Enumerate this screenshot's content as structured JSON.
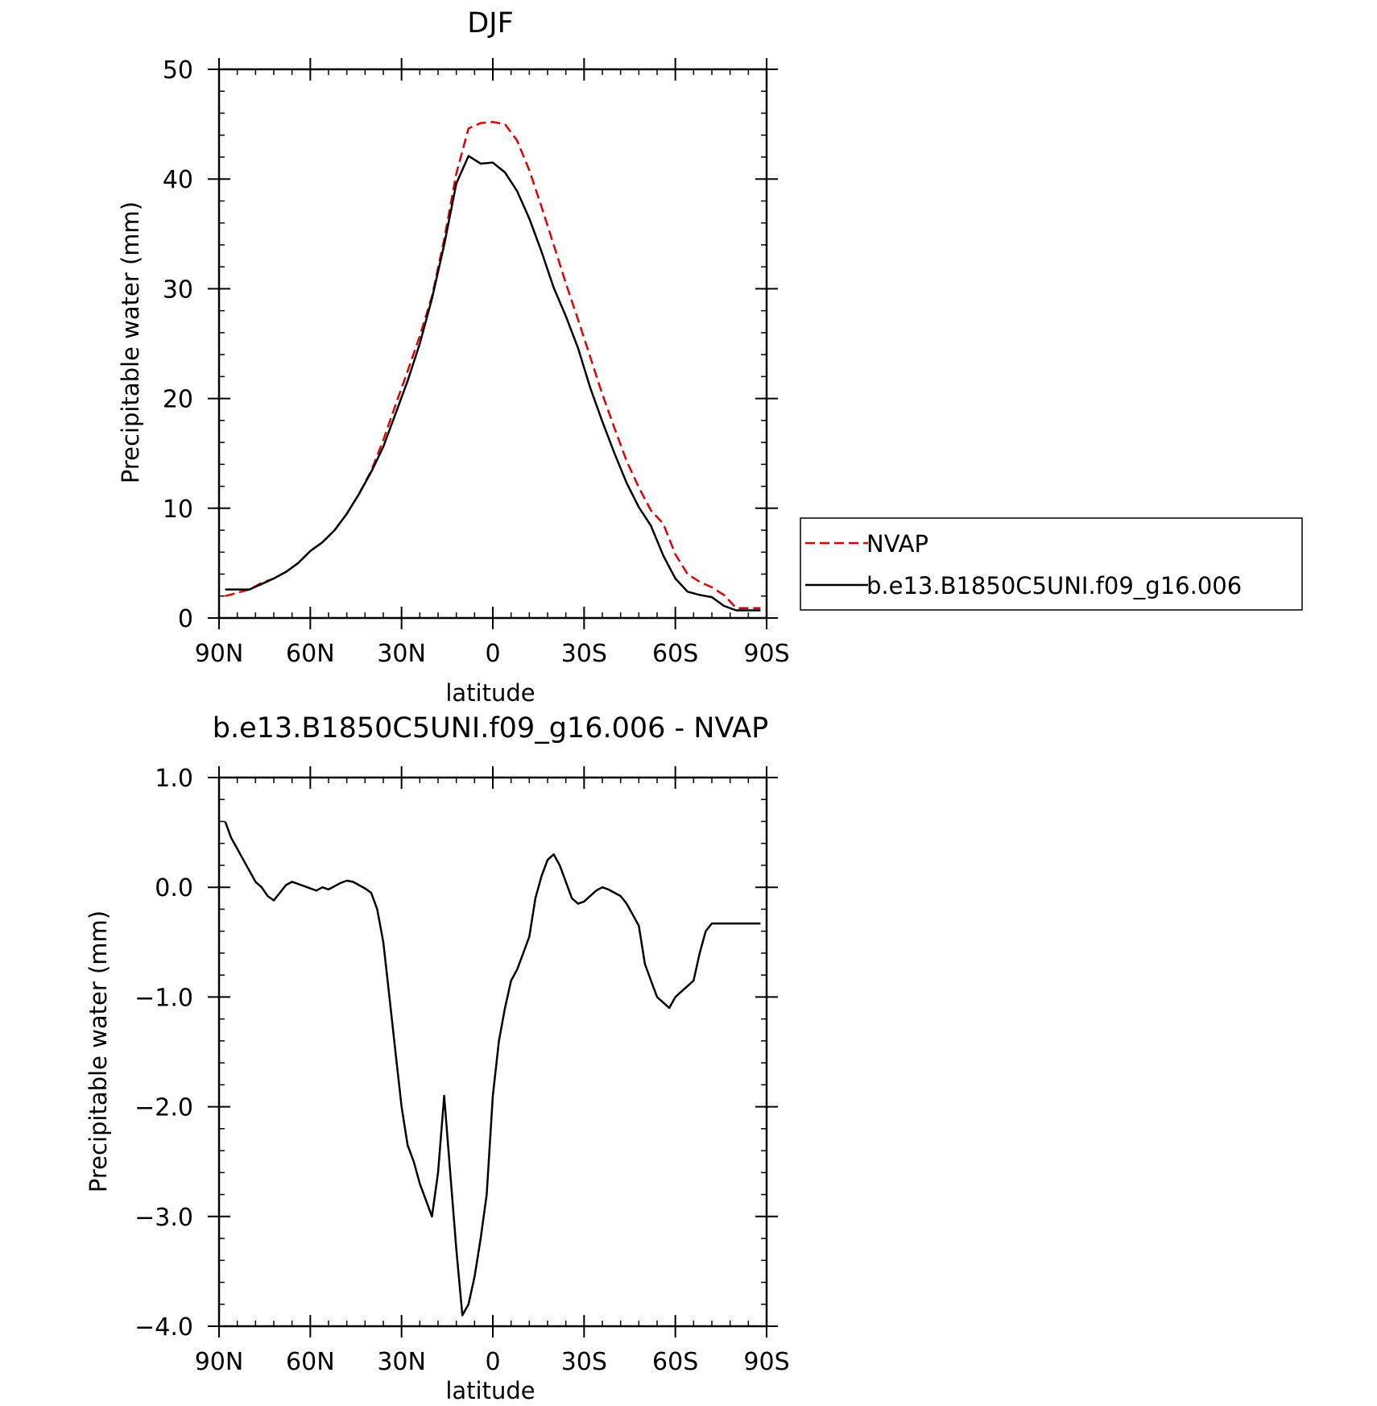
{
  "chart_data": [
    {
      "type": "line",
      "title": "DJF",
      "xlabel": "latitude",
      "ylabel": "Precipitable water (mm)",
      "xlim": [
        -90,
        90
      ],
      "ylim": [
        0,
        50
      ],
      "x_direction": "north-to-south",
      "xticks": [
        {
          "value": -90,
          "label": "90N"
        },
        {
          "value": -60,
          "label": "60N"
        },
        {
          "value": -30,
          "label": "30N"
        },
        {
          "value": 0,
          "label": "0"
        },
        {
          "value": 30,
          "label": "30S"
        },
        {
          "value": 60,
          "label": "60S"
        },
        {
          "value": 90,
          "label": "90S"
        }
      ],
      "yticks": [
        {
          "value": 0,
          "label": "0"
        },
        {
          "value": 10,
          "label": "10"
        },
        {
          "value": 20,
          "label": "20"
        },
        {
          "value": 30,
          "label": "30"
        },
        {
          "value": 40,
          "label": "40"
        },
        {
          "value": 50,
          "label": "50"
        }
      ],
      "legend": {
        "placement": "right",
        "entries": [
          {
            "name": "NVAP",
            "color": "#e00000",
            "dash": true
          },
          {
            "name": "b.e13.B1850C5UNI.f09_g16.006",
            "color": "#000000",
            "dash": false
          }
        ]
      },
      "series": [
        {
          "name": "NVAP",
          "color": "#e00000",
          "dash": true,
          "x": [
            -88,
            -84,
            -80,
            -76,
            -72,
            -68,
            -64,
            -60,
            -56,
            -52,
            -48,
            -44,
            -40,
            -36,
            -32,
            -28,
            -24,
            -20,
            -16,
            -12,
            -8,
            -4,
            0,
            4,
            8,
            12,
            16,
            20,
            24,
            28,
            32,
            36,
            40,
            44,
            48,
            52,
            56,
            60,
            64,
            68,
            72,
            76,
            80,
            84,
            88
          ],
          "values": [
            2.0,
            2.3,
            2.6,
            3.2,
            3.6,
            4.2,
            5.0,
            6.1,
            6.9,
            8.0,
            9.5,
            11.3,
            13.4,
            16.2,
            19.4,
            22.5,
            25.7,
            29.3,
            34.5,
            40.5,
            44.6,
            45.1,
            45.2,
            45.0,
            43.5,
            40.8,
            37.5,
            34.0,
            30.5,
            27.2,
            23.8,
            20.4,
            17.3,
            14.3,
            11.9,
            9.8,
            8.6,
            5.8,
            4.0,
            3.3,
            2.8,
            2.1,
            0.9,
            0.9,
            0.9
          ]
        },
        {
          "name": "b.e13.B1850C5UNI.f09_g16.006",
          "color": "#000000",
          "dash": false,
          "x": [
            -88,
            -84,
            -80,
            -76,
            -72,
            -68,
            -64,
            -60,
            -56,
            -52,
            -48,
            -44,
            -40,
            -36,
            -32,
            -28,
            -24,
            -20,
            -16,
            -12,
            -8,
            -4,
            0,
            4,
            8,
            12,
            16,
            20,
            24,
            28,
            32,
            36,
            40,
            44,
            48,
            52,
            56,
            60,
            64,
            68,
            72,
            76,
            80,
            84,
            88
          ],
          "values": [
            2.6,
            2.6,
            2.6,
            3.1,
            3.6,
            4.2,
            5.0,
            6.1,
            6.9,
            8.0,
            9.5,
            11.3,
            13.3,
            15.6,
            18.6,
            21.6,
            25.0,
            29.1,
            34.0,
            39.6,
            42.1,
            41.4,
            41.5,
            40.6,
            38.9,
            36.4,
            33.4,
            30.1,
            27.5,
            24.6,
            21.0,
            17.9,
            15.0,
            12.3,
            10.1,
            8.4,
            5.7,
            3.6,
            2.4,
            2.1,
            1.9,
            1.1,
            0.7,
            0.7,
            0.7
          ]
        }
      ]
    },
    {
      "type": "line",
      "title": "b.e13.B1850C5UNI.f09_g16.006 - NVAP",
      "xlabel": "latitude",
      "ylabel": "Precipitable water (mm)",
      "xlim": [
        -90,
        90
      ],
      "ylim": [
        -4.0,
        1.0
      ],
      "x_direction": "north-to-south",
      "xticks": [
        {
          "value": -90,
          "label": "90N"
        },
        {
          "value": -60,
          "label": "60N"
        },
        {
          "value": -30,
          "label": "30N"
        },
        {
          "value": 0,
          "label": "0"
        },
        {
          "value": 30,
          "label": "30S"
        },
        {
          "value": 60,
          "label": "60S"
        },
        {
          "value": 90,
          "label": "90S"
        }
      ],
      "yticks": [
        {
          "value": 1.0,
          "label": "1.0"
        },
        {
          "value": 0.0,
          "label": "0.0"
        },
        {
          "value": -1.0,
          "label": "−1.0"
        },
        {
          "value": -2.0,
          "label": "−2.0"
        },
        {
          "value": -3.0,
          "label": "−3.0"
        },
        {
          "value": -4.0,
          "label": "−4.0"
        }
      ],
      "series": [
        {
          "color": "#000000",
          "dash": false,
          "x": [
            -88,
            -86,
            -84,
            -82,
            -80,
            -78,
            -76,
            -74,
            -72,
            -70,
            -68,
            -66,
            -64,
            -62,
            -60,
            -58,
            -56,
            -54,
            -52,
            -50,
            -48,
            -46,
            -44,
            -42,
            -40,
            -38,
            -36,
            -34,
            -32,
            -30,
            -28,
            -26,
            -24,
            -22,
            -20,
            -18,
            -16,
            -14,
            -12,
            -10,
            -8,
            -6,
            -4,
            -2,
            0,
            2,
            4,
            6,
            8,
            10,
            12,
            14,
            16,
            18,
            20,
            22,
            24,
            26,
            28,
            30,
            32,
            34,
            36,
            38,
            40,
            42,
            44,
            46,
            48,
            50,
            52,
            54,
            56,
            58,
            60,
            62,
            64,
            66,
            68,
            70,
            72,
            74,
            76,
            78,
            80,
            82,
            84,
            86,
            88
          ],
          "values": [
            0.6,
            0.45,
            0.35,
            0.25,
            0.15,
            0.05,
            0.0,
            -0.08,
            -0.12,
            -0.05,
            0.02,
            0.05,
            0.03,
            0.01,
            -0.01,
            -0.03,
            0.0,
            -0.02,
            0.01,
            0.04,
            0.06,
            0.05,
            0.02,
            -0.01,
            -0.05,
            -0.2,
            -0.5,
            -1.0,
            -1.5,
            -2.0,
            -2.35,
            -2.5,
            -2.7,
            -2.85,
            -3.0,
            -2.6,
            -1.9,
            -2.6,
            -3.3,
            -3.9,
            -3.8,
            -3.55,
            -3.2,
            -2.8,
            -1.9,
            -1.4,
            -1.1,
            -0.85,
            -0.75,
            -0.6,
            -0.45,
            -0.1,
            0.1,
            0.25,
            0.3,
            0.2,
            0.05,
            -0.1,
            -0.15,
            -0.13,
            -0.08,
            -0.03,
            0.0,
            -0.02,
            -0.05,
            -0.08,
            -0.15,
            -0.25,
            -0.35,
            -0.7,
            -0.85,
            -1.0,
            -1.05,
            -1.1,
            -1.0,
            -0.95,
            -0.9,
            -0.85,
            -0.6,
            -0.4,
            -0.33,
            -0.33,
            -0.33,
            -0.33,
            -0.33,
            -0.33,
            -0.33,
            -0.33,
            -0.33
          ]
        }
      ]
    }
  ]
}
